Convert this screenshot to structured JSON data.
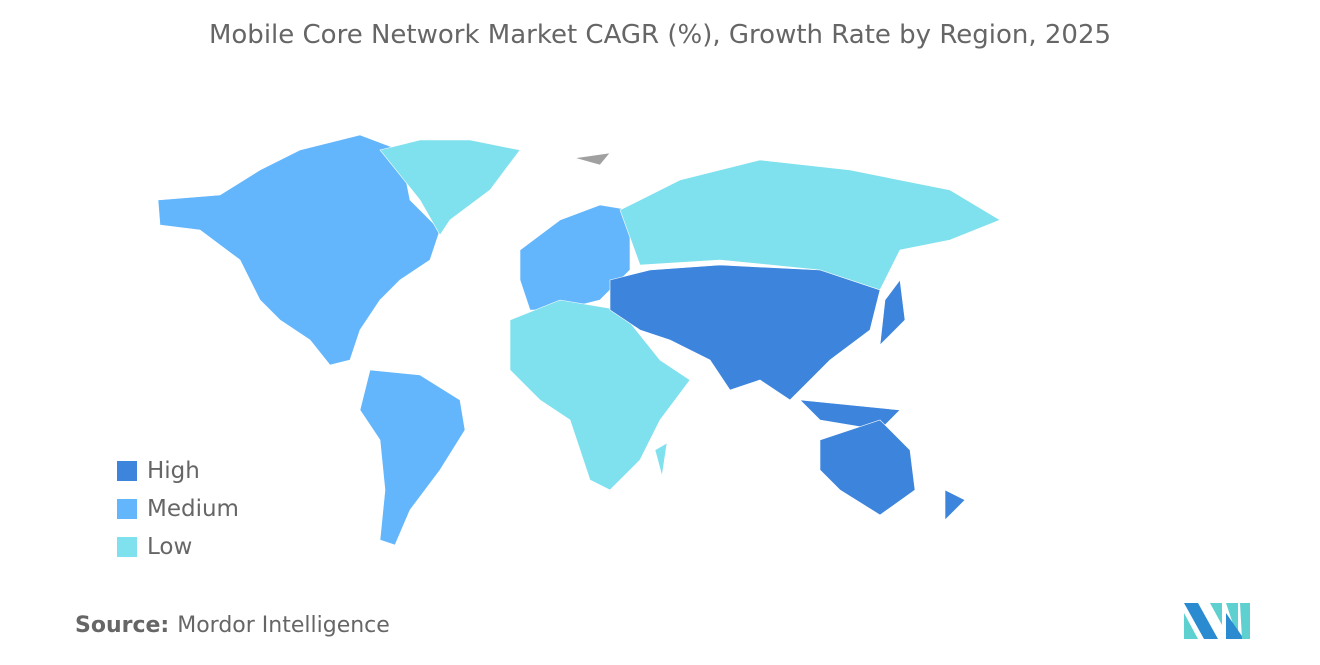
{
  "title": "Mobile Core Network Market CAGR (%), Growth Rate by Region, 2025",
  "legend": [
    {
      "label": "High",
      "color": "#3d85dc"
    },
    {
      "label": "Medium",
      "color": "#63b6fb"
    },
    {
      "label": "Low",
      "color": "#7fe0ee"
    }
  ],
  "regions": [
    {
      "name": "North America",
      "level": "Medium"
    },
    {
      "name": "South America",
      "level": "Medium"
    },
    {
      "name": "Europe",
      "level": "Medium"
    },
    {
      "name": "Greenland",
      "level": "Low"
    },
    {
      "name": "Russia",
      "level": "Low"
    },
    {
      "name": "Africa",
      "level": "Low"
    },
    {
      "name": "Asia",
      "level": "High"
    },
    {
      "name": "Middle East",
      "level": "High"
    },
    {
      "name": "Australia & Oceania",
      "level": "High"
    }
  ],
  "no_data_color": "#a0a0a0",
  "source": {
    "label": "Source:",
    "value": "Mordor Intelligence"
  }
}
